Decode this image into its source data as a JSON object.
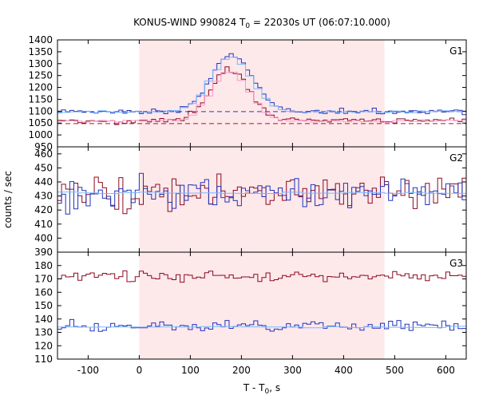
{
  "chart_data": {
    "type": "line",
    "title_main": "KONUS-WIND 990824 T",
    "title_sub": "0",
    "title_rest": " = 22030s UT (06:07:10.000)",
    "xlabel_main": "T - T",
    "xlabel_sub": "0",
    "xlabel_rest": ", s",
    "ylabel": "counts / sec",
    "xlim": [
      -160,
      640
    ],
    "xticks": [
      -100,
      0,
      100,
      200,
      300,
      400,
      500,
      600
    ],
    "xtick_labels": [
      "-100",
      "0",
      "100",
      "200",
      "300",
      "400",
      "500",
      "600"
    ],
    "highlight_interval": [
      0,
      480
    ],
    "highlight_color": "#fde8ea",
    "colors": {
      "red": "#8b0a1f",
      "blue": "#2233bb",
      "lightblue": "#7ab8ff",
      "pink": "#ff99cc",
      "background_dashed_blue": "#3333cc",
      "background_dashed_red": "#b01030"
    },
    "panels": [
      {
        "label": "G1",
        "ylim": [
          950,
          1400
        ],
        "yticks": [
          950,
          1000,
          1050,
          1100,
          1150,
          1200,
          1250,
          1300,
          1350,
          1400
        ],
        "ytick_labels": [
          "950",
          "1000",
          "1050",
          "1100",
          "1150",
          "1200",
          "1250",
          "1300",
          "1350",
          "1400"
        ],
        "background_levels": [
          {
            "color_key": "background_dashed_blue",
            "y": 1098
          },
          {
            "color_key": "background_dashed_red",
            "y": 1048
          }
        ],
        "series": [
          {
            "color_key": "blue",
            "step": 8,
            "base": 1098,
            "noise": 12,
            "peak": {
              "center": 180,
              "width": 40,
              "amp": 240
            },
            "seed": 11
          },
          {
            "color_key": "lightblue",
            "step": 16,
            "base": 1098,
            "noise": 6,
            "peak": {
              "center": 180,
              "width": 40,
              "amp": 230
            },
            "seed": 12
          },
          {
            "color_key": "red",
            "step": 8,
            "base": 1060,
            "noise": 14,
            "peak": {
              "center": 178,
              "width": 38,
              "amp": 215
            },
            "seed": 13
          },
          {
            "color_key": "pink",
            "step": 16,
            "base": 1058,
            "noise": 6,
            "peak": {
              "center": 178,
              "width": 38,
              "amp": 205
            },
            "seed": 14
          }
        ]
      },
      {
        "label": "G2",
        "ylim": [
          390,
          465
        ],
        "yticks": [
          390,
          400,
          410,
          420,
          430,
          440,
          450,
          460
        ],
        "ytick_labels": [
          "390",
          "400",
          "410",
          "420",
          "430",
          "440",
          "450",
          "460"
        ],
        "background_levels": [],
        "series": [
          {
            "color_key": "red",
            "step": 8,
            "base": 432,
            "noise": 12,
            "peak": null,
            "seed": 21
          },
          {
            "color_key": "blue",
            "step": 8,
            "base": 432,
            "noise": 12,
            "peak": null,
            "seed": 22
          },
          {
            "color_key": "lightblue",
            "step": 40,
            "base": 432,
            "noise": 1,
            "peak": null,
            "seed": 23
          }
        ]
      },
      {
        "label": "G3",
        "ylim": [
          110,
          190
        ],
        "yticks": [
          110,
          120,
          130,
          140,
          150,
          160,
          170,
          180
        ],
        "ytick_labels": [
          "110",
          "120",
          "130",
          "140",
          "150",
          "160",
          "170",
          "180"
        ],
        "background_levels": [],
        "series": [
          {
            "color_key": "red",
            "step": 8,
            "base": 172,
            "noise": 4,
            "peak": null,
            "seed": 31
          },
          {
            "color_key": "blue",
            "step": 8,
            "base": 135,
            "noise": 4,
            "peak": null,
            "seed": 32
          },
          {
            "color_key": "lightblue",
            "step": 40,
            "base": 134,
            "noise": 0.6,
            "peak": null,
            "seed": 33
          }
        ]
      }
    ]
  }
}
